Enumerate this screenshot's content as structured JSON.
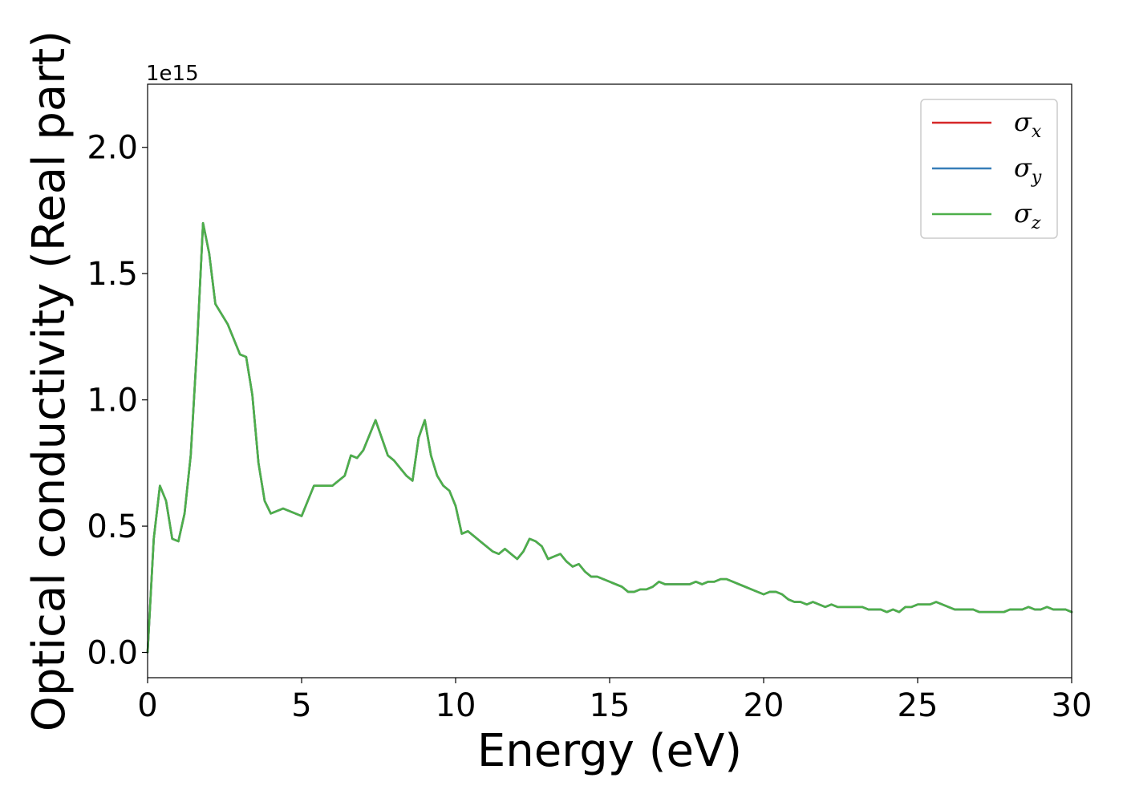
{
  "chart_data": {
    "type": "line",
    "title": "",
    "xlabel": "Energy (eV)",
    "ylabel": "Optical conductivity (Real part)",
    "y_offset_label": "1e15",
    "xlim": [
      0,
      30
    ],
    "ylim": [
      -0.1,
      2.25
    ],
    "xticks": [
      0,
      5,
      10,
      15,
      20,
      25,
      30
    ],
    "xtick_labels": [
      "0",
      "5",
      "10",
      "15",
      "20",
      "25",
      "30"
    ],
    "yticks": [
      0.0,
      0.5,
      1.0,
      1.5,
      2.0
    ],
    "ytick_labels": [
      "0.0",
      "0.5",
      "1.0",
      "1.5",
      "2.0"
    ],
    "grid": false,
    "legend_position": "top-right",
    "series": [
      {
        "name": "σx",
        "symbol": "σ",
        "subscript": "x",
        "color": "#d62728"
      },
      {
        "name": "σy",
        "symbol": "σ",
        "subscript": "y",
        "color": "#377eb8"
      },
      {
        "name": "σz",
        "symbol": "σ",
        "subscript": "z",
        "color": "#4daf4a"
      }
    ],
    "x": [
      0.0,
      0.2,
      0.4,
      0.6,
      0.8,
      1.0,
      1.2,
      1.4,
      1.6,
      1.8,
      2.0,
      2.2,
      2.4,
      2.6,
      2.8,
      3.0,
      3.2,
      3.4,
      3.6,
      3.8,
      4.0,
      4.2,
      4.4,
      4.6,
      4.8,
      5.0,
      5.2,
      5.4,
      5.6,
      5.8,
      6.0,
      6.2,
      6.4,
      6.6,
      6.8,
      7.0,
      7.2,
      7.4,
      7.6,
      7.8,
      8.0,
      8.2,
      8.4,
      8.6,
      8.8,
      9.0,
      9.2,
      9.4,
      9.6,
      9.8,
      10.0,
      10.2,
      10.4,
      10.6,
      10.8,
      11.0,
      11.2,
      11.4,
      11.6,
      11.8,
      12.0,
      12.2,
      12.4,
      12.6,
      12.8,
      13.0,
      13.2,
      13.4,
      13.6,
      13.8,
      14.0,
      14.2,
      14.4,
      14.6,
      14.8,
      15.0,
      15.2,
      15.4,
      15.6,
      15.8,
      16.0,
      16.2,
      16.4,
      16.6,
      16.8,
      17.0,
      17.2,
      17.4,
      17.6,
      17.8,
      18.0,
      18.2,
      18.4,
      18.6,
      18.8,
      19.0,
      19.2,
      19.4,
      19.6,
      19.8,
      20.0,
      20.2,
      20.4,
      20.6,
      20.8,
      21.0,
      21.2,
      21.4,
      21.6,
      21.8,
      22.0,
      22.2,
      22.4,
      22.6,
      22.8,
      23.0,
      23.2,
      23.4,
      23.6,
      23.8,
      24.0,
      24.2,
      24.4,
      24.6,
      24.8,
      25.0,
      25.2,
      25.4,
      25.6,
      25.8,
      26.0,
      26.2,
      26.4,
      26.6,
      26.8,
      27.0,
      27.2,
      27.4,
      27.6,
      27.8,
      28.0,
      28.2,
      28.4,
      28.6,
      28.8,
      29.0,
      29.2,
      29.4,
      29.6,
      29.8,
      30.0
    ],
    "y": [
      0.0,
      0.45,
      0.66,
      0.6,
      0.45,
      0.44,
      0.55,
      0.78,
      1.2,
      1.7,
      1.58,
      1.38,
      1.34,
      1.3,
      1.24,
      1.18,
      1.17,
      1.02,
      0.75,
      0.6,
      0.55,
      0.56,
      0.57,
      0.56,
      0.55,
      0.54,
      0.6,
      0.66,
      0.66,
      0.66,
      0.66,
      0.68,
      0.7,
      0.78,
      0.77,
      0.8,
      0.86,
      0.92,
      0.85,
      0.78,
      0.76,
      0.73,
      0.7,
      0.68,
      0.85,
      0.92,
      0.78,
      0.7,
      0.66,
      0.64,
      0.58,
      0.47,
      0.48,
      0.46,
      0.44,
      0.42,
      0.4,
      0.39,
      0.41,
      0.39,
      0.37,
      0.4,
      0.45,
      0.44,
      0.42,
      0.37,
      0.38,
      0.39,
      0.36,
      0.34,
      0.35,
      0.32,
      0.3,
      0.3,
      0.29,
      0.28,
      0.27,
      0.26,
      0.24,
      0.24,
      0.25,
      0.25,
      0.26,
      0.28,
      0.27,
      0.27,
      0.27,
      0.27,
      0.27,
      0.28,
      0.27,
      0.28,
      0.28,
      0.29,
      0.29,
      0.28,
      0.27,
      0.26,
      0.25,
      0.24,
      0.23,
      0.24,
      0.24,
      0.23,
      0.21,
      0.2,
      0.2,
      0.19,
      0.2,
      0.19,
      0.18,
      0.19,
      0.18,
      0.18,
      0.18,
      0.18,
      0.18,
      0.17,
      0.17,
      0.17,
      0.16,
      0.17,
      0.16,
      0.18,
      0.18,
      0.19,
      0.19,
      0.19,
      0.2,
      0.19,
      0.18,
      0.17,
      0.17,
      0.17,
      0.17,
      0.16,
      0.16,
      0.16,
      0.16,
      0.16,
      0.17,
      0.17,
      0.17,
      0.18,
      0.17,
      0.17,
      0.18,
      0.17,
      0.17,
      0.17,
      0.16
    ]
  }
}
